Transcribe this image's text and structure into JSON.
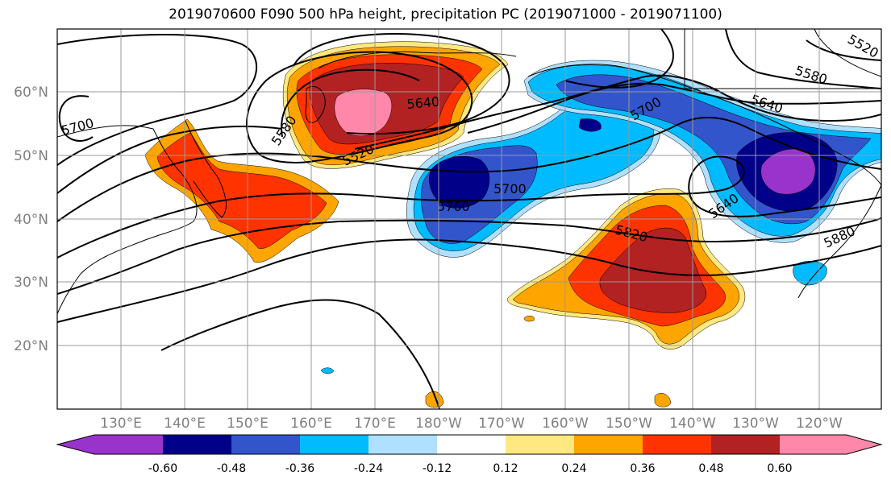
{
  "title": "2019070600 F090 500 hPa height, precipitation PC (2019071000 - 2019071100)",
  "lat_labels": [
    "60°N",
    "50°N",
    "40°N",
    "30°N",
    "20°N"
  ],
  "lon_labels": [
    "130°E",
    "140°E",
    "150°E",
    "160°E",
    "170°E",
    "180°W",
    "170°W",
    "160°W",
    "150°W",
    "140°W",
    "130°W",
    "120°W"
  ],
  "height_contour_labels": [
    "5700",
    "5580",
    "5520",
    "5640",
    "5700",
    "5760",
    "5820",
    "5640",
    "5880",
    "5700",
    "5580",
    "5640",
    "5520"
  ],
  "colorbar": {
    "tick_labels": [
      "-0.60",
      "-0.48",
      "-0.36",
      "-0.24",
      "-0.12",
      "0.12",
      "0.24",
      "0.36",
      "0.48",
      "0.60"
    ],
    "colors": [
      "#9933cc",
      "#000088",
      "#3355cc",
      "#00bbff",
      "#b0e0ff",
      "#ffffff",
      "#ffe880",
      "#ffa500",
      "#ff3300",
      "#b22222",
      "#ff88aa"
    ]
  },
  "shading_colors": {
    "neg_strong": "#9933cc",
    "neg_dark": "#000088",
    "neg_mid": "#3355cc",
    "neg_light": "#00bbff",
    "neg_pale": "#b0e0ff",
    "pos_pale": "#ffe880",
    "pos_light": "#ffa500",
    "pos_mid": "#ff3300",
    "pos_dark": "#b22222",
    "pos_strong": "#ff88aa"
  }
}
